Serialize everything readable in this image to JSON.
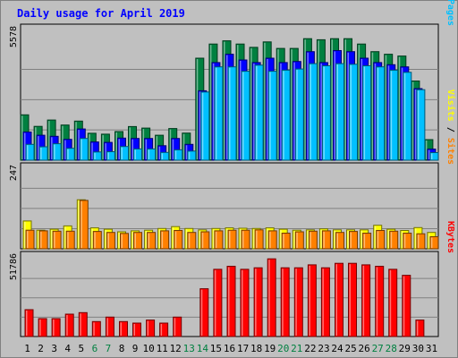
{
  "chart_data": {
    "type": "bar",
    "title": "Daily usage for April 2019",
    "days": [
      "1",
      "2",
      "3",
      "4",
      "5",
      "6",
      "7",
      "8",
      "9",
      "10",
      "11",
      "12",
      "13",
      "14",
      "15",
      "16",
      "17",
      "18",
      "19",
      "20",
      "21",
      "22",
      "23",
      "24",
      "25",
      "26",
      "27",
      "28",
      "29",
      "30",
      "31"
    ],
    "weekend_days": [
      "6",
      "7",
      "13",
      "14",
      "20",
      "21",
      "27",
      "28"
    ],
    "panels": [
      {
        "id": "top",
        "max_label": "5578",
        "ymax": 5578,
        "legend": [
          {
            "text": "Pages",
            "color": "#00c0ff"
          },
          {
            "text": "Files",
            "color": "#0000ff"
          },
          {
            "text": "Hits",
            "color": "#008040"
          }
        ],
        "legend_sep": " / ",
        "series": [
          {
            "key": "hits",
            "color": "#008040",
            "values": [
              2090,
              1560,
              1850,
              1620,
              1800,
              1240,
              1200,
              1320,
              1550,
              1480,
              1150,
              1460,
              1250,
              4700,
              5350,
              5500,
              5350,
              5200,
              5450,
              5150,
              5150,
              5600,
              5550,
              5600,
              5600,
              5350,
              5000,
              4880,
              4800,
              3650,
              950
            ]
          },
          {
            "key": "files",
            "color": "#0000ff",
            "values": [
              1300,
              1150,
              1100,
              960,
              1440,
              840,
              820,
              1020,
              1000,
              1000,
              670,
              1000,
              730,
              3200,
              4500,
              4880,
              4620,
              4500,
              4700,
              4500,
              4550,
              5000,
              4500,
              5050,
              5000,
              4700,
              4500,
              4400,
              4300,
              3300,
              510
            ]
          },
          {
            "key": "pages",
            "color": "#00c0ff",
            "values": [
              730,
              620,
              760,
              550,
              1000,
              380,
              390,
              630,
              520,
              520,
              360,
              480,
              420,
              3140,
              4300,
              4300,
              4100,
              4380,
              4100,
              4150,
              4200,
              4450,
              4350,
              4450,
              4420,
              4350,
              4300,
              4150,
              4050,
              3250,
              350
            ]
          }
        ]
      },
      {
        "id": "middle",
        "max_label": "247",
        "ymax": 247,
        "legend": [
          {
            "text": "Sites",
            "color": "#ff8000"
          },
          {
            "text": "Visits",
            "color": "#ffff00"
          }
        ],
        "legend_sep": " / ",
        "series": [
          {
            "key": "visits",
            "color": "#ffff00",
            "values": [
              85,
              57,
              60,
              70,
              150,
              64,
              60,
              52,
              55,
              57,
              62,
              68,
              62,
              58,
              62,
              64,
              63,
              62,
              64,
              60,
              57,
              58,
              61,
              58,
              58,
              58,
              72,
              60,
              56,
              65,
              50
            ]
          },
          {
            "key": "sites",
            "color": "#ff8000",
            "values": [
              57,
              55,
              54,
              54,
              148,
              53,
              50,
              47,
              50,
              50,
              55,
              56,
              50,
              52,
              55,
              57,
              57,
              58,
              55,
              48,
              52,
              54,
              55,
              50,
              53,
              48,
              56,
              54,
              48,
              46,
              37
            ]
          }
        ]
      },
      {
        "id": "bottom",
        "max_label": "51786",
        "ymax": 51786,
        "legend": [
          {
            "text": "KBytes",
            "color": "#ff0000"
          }
        ],
        "legend_sep": "",
        "series": [
          {
            "key": "kbytes",
            "color": "#ff0000",
            "values": [
              18000,
              12000,
              12000,
              15000,
              16000,
              10000,
              13000,
              10000,
              9000,
              11000,
              9000,
              13000,
              0,
              32000,
              45000,
              47000,
              45000,
              46000,
              52000,
              46000,
              46000,
              48000,
              46000,
              49000,
              49000,
              48000,
              47000,
              45000,
              41000,
              11000,
              0
            ]
          }
        ]
      }
    ]
  }
}
